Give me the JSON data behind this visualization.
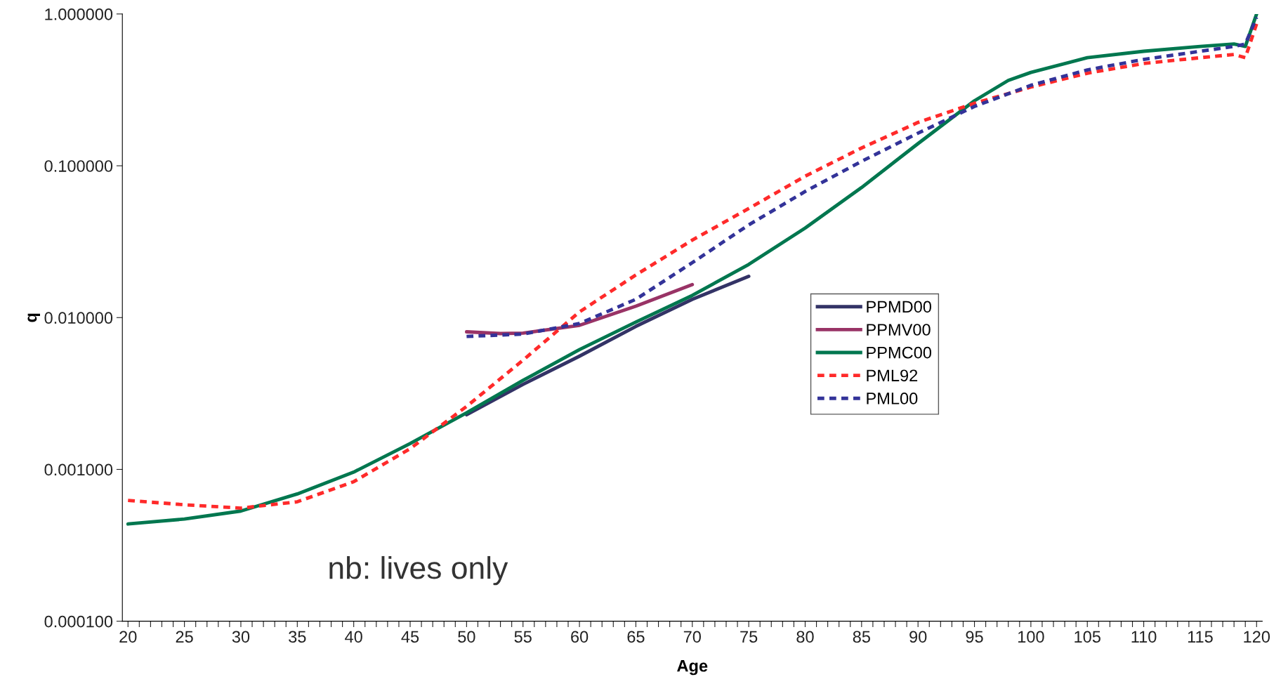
{
  "chart_data": {
    "type": "line",
    "xlabel": "Age",
    "ylabel": "q",
    "log": "y",
    "grid": false,
    "legend": "center",
    "marker": "none",
    "xlim": [
      19.5,
      120.5
    ],
    "ylim": [
      0.0001,
      1
    ],
    "yticks": [
      {
        "value": 0.0001,
        "label": "0.000100"
      },
      {
        "value": 0.001,
        "label": "0.001000"
      },
      {
        "value": 0.01,
        "label": "0.010000"
      },
      {
        "value": 0.1,
        "label": "0.100000"
      },
      {
        "value": 1,
        "label": "1.000000"
      }
    ],
    "xticks": [
      20,
      {
        "value": 21,
        "label": null
      },
      {
        "value": 22,
        "label": null
      },
      {
        "value": 23,
        "label": null
      },
      {
        "value": 24,
        "label": null
      },
      25,
      {
        "value": 26,
        "label": null
      },
      {
        "value": 27,
        "label": null
      },
      {
        "value": 28,
        "label": null
      },
      {
        "value": 29,
        "label": null
      },
      30,
      {
        "value": 31,
        "label": null
      },
      {
        "value": 32,
        "label": null
      },
      {
        "value": 33,
        "label": null
      },
      {
        "value": 34,
        "label": null
      },
      35,
      {
        "value": 36,
        "label": null
      },
      {
        "value": 37,
        "label": null
      },
      {
        "value": 38,
        "label": null
      },
      {
        "value": 39,
        "label": null
      },
      40,
      {
        "value": 41,
        "label": null
      },
      {
        "value": 42,
        "label": null
      },
      {
        "value": 43,
        "label": null
      },
      {
        "value": 44,
        "label": null
      },
      45,
      {
        "value": 46,
        "label": null
      },
      {
        "value": 47,
        "label": null
      },
      {
        "value": 48,
        "label": null
      },
      {
        "value": 49,
        "label": null
      },
      50,
      {
        "value": 51,
        "label": null
      },
      {
        "value": 52,
        "label": null
      },
      {
        "value": 53,
        "label": null
      },
      {
        "value": 54,
        "label": null
      },
      55,
      {
        "value": 56,
        "label": null
      },
      {
        "value": 57,
        "label": null
      },
      {
        "value": 58,
        "label": null
      },
      {
        "value": 59,
        "label": null
      },
      60,
      {
        "value": 61,
        "label": null
      },
      {
        "value": 62,
        "label": null
      },
      {
        "value": 63,
        "label": null
      },
      {
        "value": 64,
        "label": null
      },
      65,
      {
        "value": 66,
        "label": null
      },
      {
        "value": 67,
        "label": null
      },
      {
        "value": 68,
        "label": null
      },
      {
        "value": 69,
        "label": null
      },
      70,
      {
        "value": 71,
        "label": null
      },
      {
        "value": 72,
        "label": null
      },
      {
        "value": 73,
        "label": null
      },
      {
        "value": 74,
        "label": null
      },
      75,
      {
        "value": 76,
        "label": null
      },
      {
        "value": 77,
        "label": null
      },
      {
        "value": 78,
        "label": null
      },
      {
        "value": 79,
        "label": null
      },
      80,
      {
        "value": 81,
        "label": null
      },
      {
        "value": 82,
        "label": null
      },
      {
        "value": 83,
        "label": null
      },
      {
        "value": 84,
        "label": null
      },
      85,
      {
        "value": 86,
        "label": null
      },
      {
        "value": 87,
        "label": null
      },
      {
        "value": 88,
        "label": null
      },
      {
        "value": 89,
        "label": null
      },
      90,
      {
        "value": 91,
        "label": null
      },
      {
        "value": 92,
        "label": null
      },
      {
        "value": 93,
        "label": null
      },
      {
        "value": 94,
        "label": null
      },
      95,
      {
        "value": 96,
        "label": null
      },
      {
        "value": 97,
        "label": null
      },
      {
        "value": 98,
        "label": null
      },
      {
        "value": 99,
        "label": null
      },
      100,
      {
        "value": 101,
        "label": null
      },
      {
        "value": 102,
        "label": null
      },
      {
        "value": 103,
        "label": null
      },
      {
        "value": 104,
        "label": null
      },
      105,
      {
        "value": 106,
        "label": null
      },
      {
        "value": 107,
        "label": null
      },
      {
        "value": 108,
        "label": null
      },
      {
        "value": 109,
        "label": null
      },
      110,
      {
        "value": 111,
        "label": null
      },
      {
        "value": 112,
        "label": null
      },
      {
        "value": 113,
        "label": null
      },
      {
        "value": 114,
        "label": null
      },
      115,
      {
        "value": 116,
        "label": null
      },
      {
        "value": 117,
        "label": null
      },
      {
        "value": 118,
        "label": null
      },
      {
        "value": 119,
        "label": null
      },
      120
    ],
    "annotations": [
      "nb: lives only"
    ],
    "series": [
      {
        "name": "PPMD00",
        "color": "#333366",
        "line_style": "solid",
        "x": [
          50,
          55,
          60,
          65,
          70,
          75
        ],
        "values": [
          0.00229,
          0.00363,
          0.00557,
          0.00875,
          0.0132,
          0.0187
        ]
      },
      {
        "name": "PPMV00",
        "color": "#993366",
        "line_style": "solid",
        "x": [
          50,
          53,
          55,
          60,
          65,
          70
        ],
        "values": [
          0.00806,
          0.00785,
          0.0079,
          0.00889,
          0.0119,
          0.0165
        ]
      },
      {
        "name": "PPMC00",
        "color": "#00774f",
        "line_style": "solid",
        "x": [
          20,
          25,
          30,
          35,
          40,
          45,
          50,
          55,
          60,
          65,
          70,
          75,
          80,
          85,
          90,
          95,
          98,
          100,
          105,
          110,
          115,
          118,
          119,
          120
        ],
        "values": [
          0.000437,
          0.000471,
          0.000532,
          0.000689,
          0.00096,
          0.00148,
          0.00236,
          0.00386,
          0.00615,
          0.00935,
          0.014,
          0.0224,
          0.0389,
          0.0719,
          0.14,
          0.268,
          0.365,
          0.412,
          0.515,
          0.568,
          0.611,
          0.634,
          0.611,
          1.0
        ]
      },
      {
        "name": "PML92",
        "color": "#ff2a2a",
        "line_style": "dashed",
        "x": [
          20,
          25,
          30,
          35,
          40,
          45,
          50,
          55,
          60,
          65,
          70,
          75,
          80,
          85,
          90,
          95,
          100,
          105,
          110,
          115,
          118,
          119,
          120
        ],
        "values": [
          0.000625,
          0.000585,
          0.000556,
          0.000612,
          0.00083,
          0.00137,
          0.0026,
          0.00524,
          0.0109,
          0.0191,
          0.0324,
          0.0523,
          0.0854,
          0.131,
          0.193,
          0.258,
          0.33,
          0.407,
          0.472,
          0.515,
          0.541,
          0.515,
          0.86
        ]
      },
      {
        "name": "PML00",
        "color": "#333399",
        "line_style": "dashed",
        "x": [
          50,
          55,
          60,
          65,
          70,
          75,
          80,
          85,
          90,
          95,
          100,
          105,
          110,
          115,
          118,
          119,
          120
        ],
        "values": [
          0.00751,
          0.00779,
          0.00914,
          0.0132,
          0.023,
          0.0408,
          0.0677,
          0.107,
          0.164,
          0.246,
          0.339,
          0.428,
          0.502,
          0.568,
          0.611,
          0.634,
          0.95
        ]
      }
    ]
  }
}
